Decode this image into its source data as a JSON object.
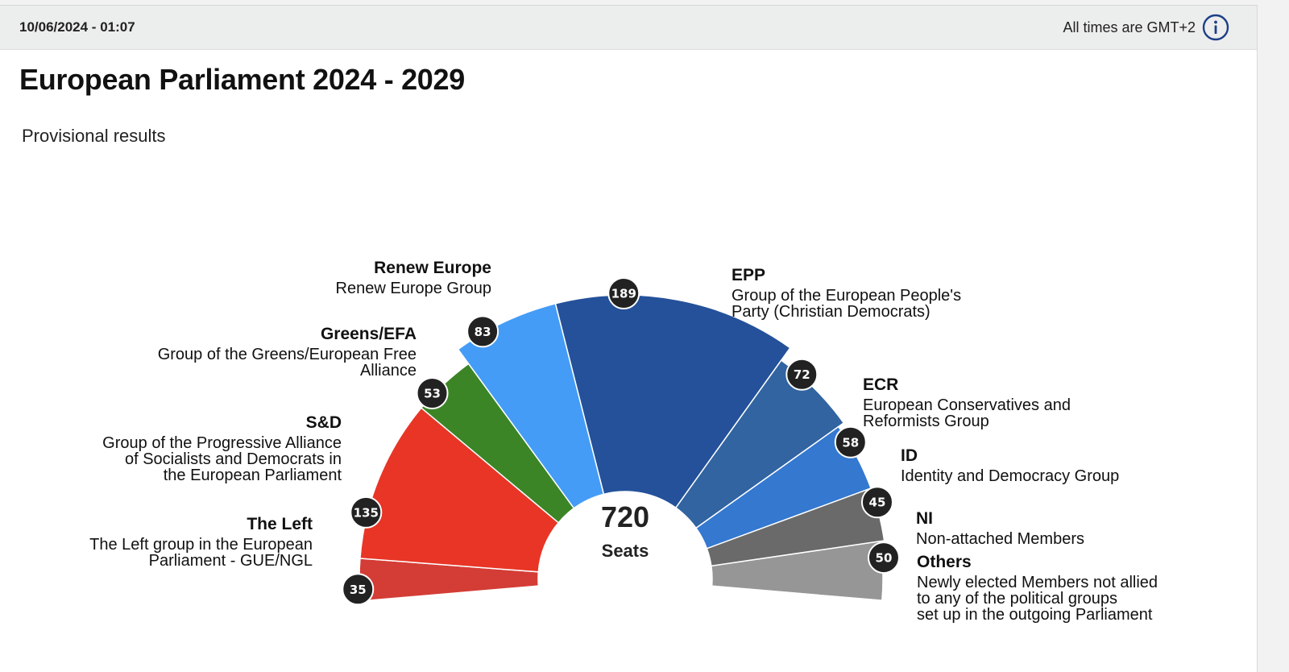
{
  "header": {
    "timestamp": "10/06/2024 - 01:07",
    "timezone_note": "All times are GMT+2",
    "info_icon": "info-circle-icon"
  },
  "main": {
    "title": "European Parliament 2024 - 2029",
    "subtitle": "Provisional results"
  },
  "chart_data": {
    "type": "pie",
    "subtype": "parliament-hemicycle",
    "title": "European Parliament 2024 - 2029",
    "subtitle": "Provisional results",
    "total": 720,
    "total_label": "Seats",
    "groups": [
      {
        "abbr": "The Left",
        "name_lines": [
          "The Left group in the European",
          "Parliament - GUE/NGL"
        ],
        "seats": 35,
        "color": "#d33d36"
      },
      {
        "abbr": "S&D",
        "name_lines": [
          "Group of the Progressive Alliance",
          "of Socialists and Democrats in",
          "the European Parliament"
        ],
        "seats": 135,
        "color": "#e83526"
      },
      {
        "abbr": "Greens/EFA",
        "name_lines": [
          "Group of the Greens/European Free",
          "Alliance"
        ],
        "seats": 53,
        "color": "#3b8526"
      },
      {
        "abbr": "Renew Europe",
        "name_lines": [
          "Renew Europe Group"
        ],
        "seats": 83,
        "color": "#449cf6"
      },
      {
        "abbr": "EPP",
        "name_lines": [
          "Group of the European People's",
          "Party (Christian Democrats)"
        ],
        "seats": 189,
        "color": "#24519a"
      },
      {
        "abbr": "ECR",
        "name_lines": [
          "European Conservatives and",
          "Reformists Group"
        ],
        "seats": 72,
        "color": "#3164a1"
      },
      {
        "abbr": "ID",
        "name_lines": [
          "Identity and Democracy Group"
        ],
        "seats": 58,
        "color": "#3478d0"
      },
      {
        "abbr": "NI",
        "name_lines": [
          "Non-attached Members"
        ],
        "seats": 45,
        "color": "#6a6a6a"
      },
      {
        "abbr": "Others",
        "name_lines": [
          "Newly elected Members not allied",
          "to any of the political groups",
          "set up in the outgoing Parliament"
        ],
        "seats": 50,
        "color": "#969696"
      }
    ],
    "badge_color": "#222222"
  }
}
